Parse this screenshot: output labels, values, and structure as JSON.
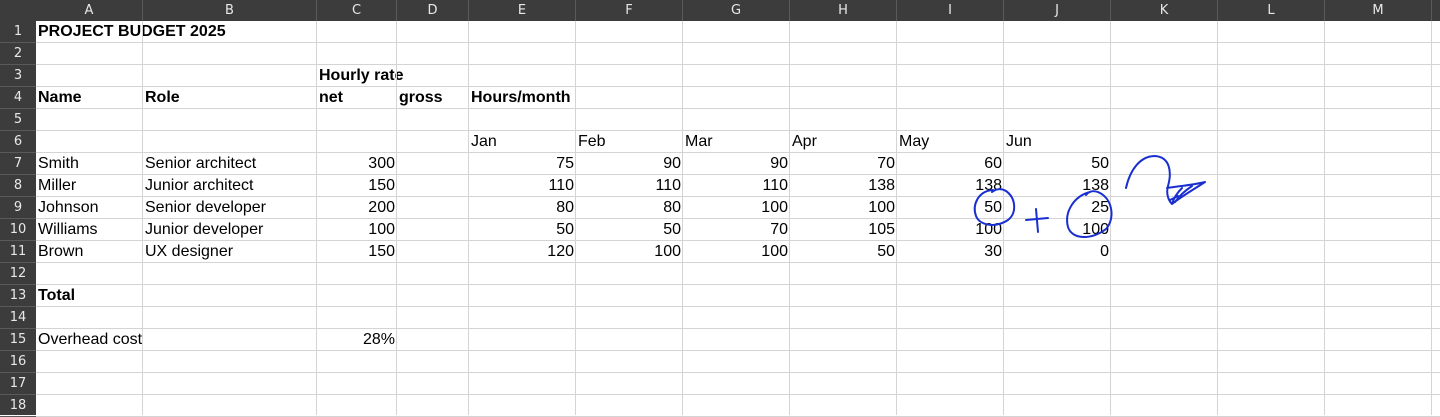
{
  "columns": [
    "A",
    "B",
    "C",
    "D",
    "E",
    "F",
    "G",
    "H",
    "I",
    "J",
    "K",
    "L",
    "M"
  ],
  "rows": [
    "1",
    "2",
    "3",
    "4",
    "5",
    "6",
    "7",
    "8",
    "9",
    "10",
    "11",
    "12",
    "13",
    "14",
    "15",
    "16",
    "17",
    "18"
  ],
  "sheet": {
    "title": "PROJECT BUDGET 2025",
    "hourly_rate": "Hourly rate",
    "h_name": "Name",
    "h_role": "Role",
    "h_net": "net",
    "h_gross": "gross",
    "h_hours": "Hours/month",
    "months": [
      "Jan",
      "Feb",
      "Mar",
      "Apr",
      "May",
      "Jun"
    ],
    "people": [
      {
        "name": "Smith",
        "role": "Senior architect",
        "rate": "300",
        "hours": [
          "75",
          "90",
          "90",
          "70",
          "60",
          "50"
        ]
      },
      {
        "name": "Miller",
        "role": "Junior architect",
        "rate": "150",
        "hours": [
          "110",
          "110",
          "110",
          "138",
          "138",
          "138"
        ]
      },
      {
        "name": "Johnson",
        "role": "Senior developer",
        "rate": "200",
        "hours": [
          "80",
          "80",
          "100",
          "100",
          "50",
          "25"
        ]
      },
      {
        "name": "Williams",
        "role": "Junior developer",
        "rate": "100",
        "hours": [
          "50",
          "50",
          "70",
          "105",
          "100",
          "100"
        ]
      },
      {
        "name": "Brown",
        "role": "UX designer",
        "rate": "150",
        "hours": [
          "120",
          "100",
          "100",
          "50",
          "30",
          "0"
        ]
      }
    ],
    "total": "Total",
    "overhead_label": "Overhead cost",
    "overhead_value": "28%"
  },
  "colors": {
    "header_bg": "#3c3c3c",
    "grid": "#d4d4d4",
    "ink": "#1a2fd0"
  }
}
